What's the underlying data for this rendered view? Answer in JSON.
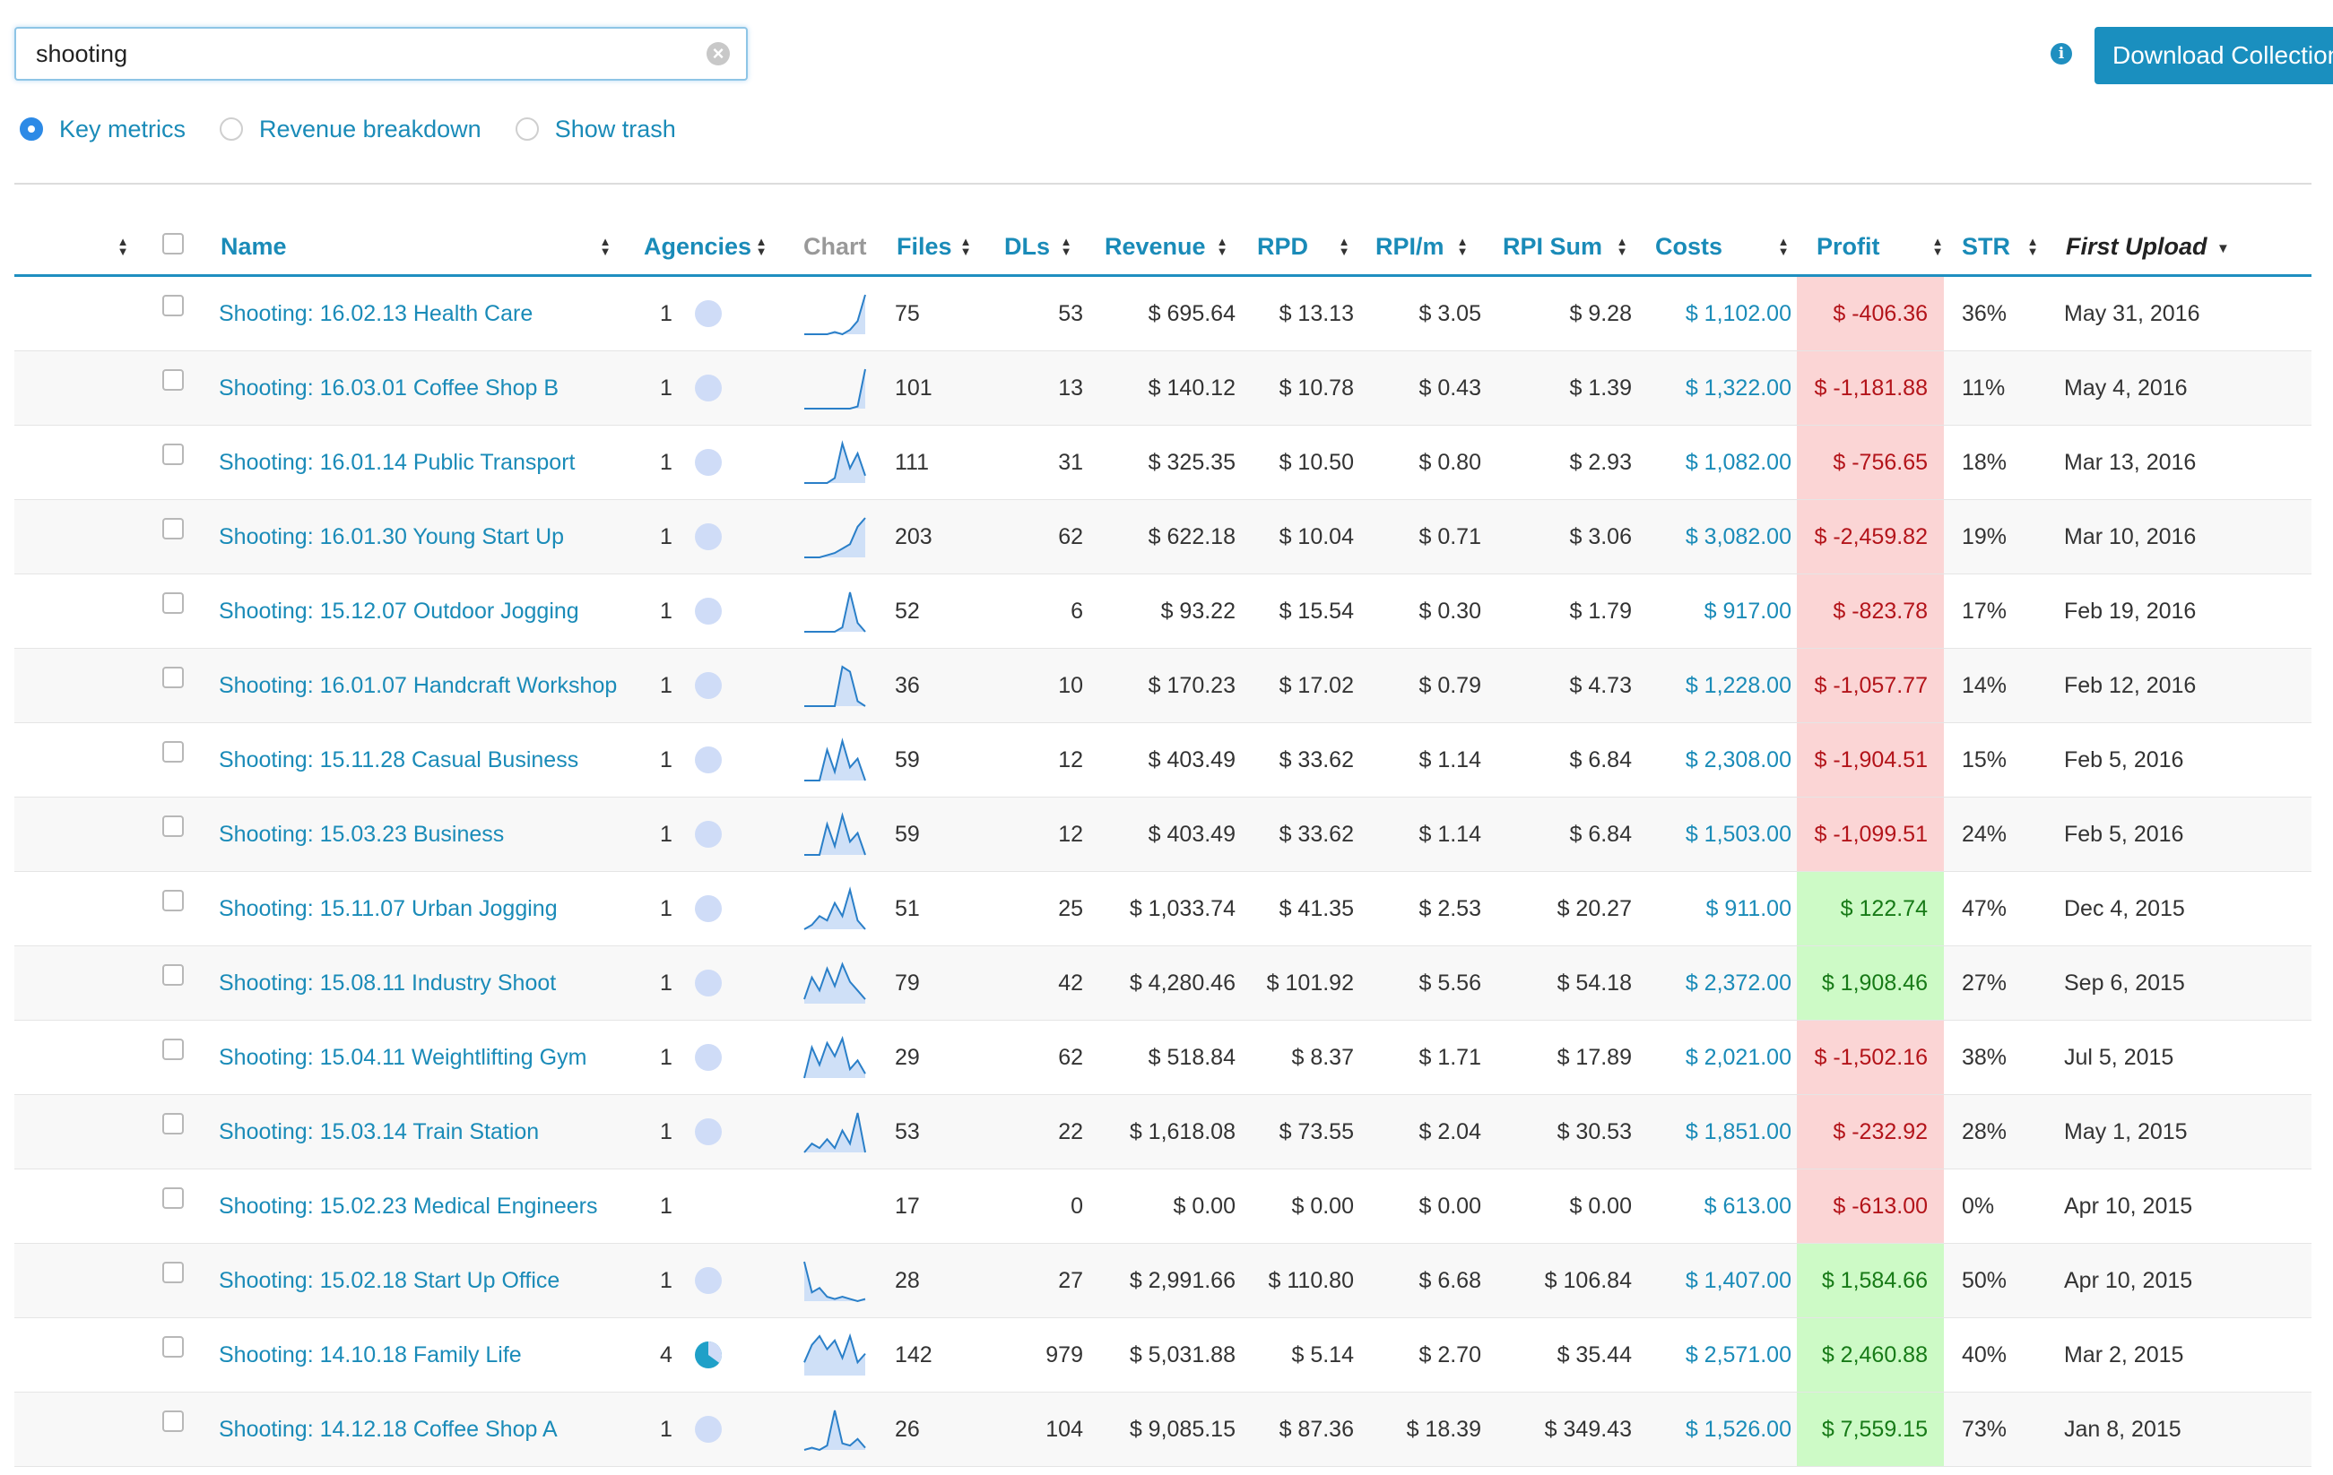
{
  "search": {
    "value": "shooting"
  },
  "toolbar": {
    "download_label": "Download Collection"
  },
  "view_options": [
    {
      "label": "Key metrics",
      "checked": true
    },
    {
      "label": "Revenue breakdown",
      "checked": false
    },
    {
      "label": "Show trash",
      "checked": false
    }
  ],
  "table": {
    "columns": {
      "name": "Name",
      "agencies": "Agencies",
      "chart": "Chart",
      "files": "Files",
      "dls": "DLs",
      "revenue": "Revenue",
      "rpd": "RPD",
      "rpim": "RPI/m",
      "rpisum": "RPI Sum",
      "costs": "Costs",
      "profit": "Profit",
      "str": "STR",
      "first_upload": "First Upload"
    },
    "rows": [
      {
        "name": "Shooting: 16.02.13 Health Care",
        "agencies": "1",
        "agency_share": 0,
        "spark": [
          0,
          0,
          0,
          0,
          1,
          0,
          2,
          6,
          18
        ],
        "files": "75",
        "dls": "53",
        "revenue": "$ 695.64",
        "rpd": "$ 13.13",
        "rpim": "$ 3.05",
        "rpisum": "$ 9.28",
        "costs": "$ 1,102.00",
        "profit": "$ -406.36",
        "profit_sign": "neg",
        "str": "36%",
        "first_upload": "May 31, 2016"
      },
      {
        "name": "Shooting: 16.03.01 Coffee Shop B",
        "agencies": "1",
        "agency_share": 0,
        "spark": [
          0,
          0,
          0,
          0,
          0,
          0,
          0,
          1,
          18
        ],
        "files": "101",
        "dls": "13",
        "revenue": "$ 140.12",
        "rpd": "$ 10.78",
        "rpim": "$ 0.43",
        "rpisum": "$ 1.39",
        "costs": "$ 1,322.00",
        "profit": "$ -1,181.88",
        "profit_sign": "neg",
        "str": "11%",
        "first_upload": "May 4, 2016"
      },
      {
        "name": "Shooting: 16.01.14 Public Transport",
        "agencies": "1",
        "agency_share": 0,
        "spark": [
          0,
          0,
          0,
          0,
          2,
          16,
          6,
          12,
          3
        ],
        "files": "111",
        "dls": "31",
        "revenue": "$ 325.35",
        "rpd": "$ 10.50",
        "rpim": "$ 0.80",
        "rpisum": "$ 2.93",
        "costs": "$ 1,082.00",
        "profit": "$ -756.65",
        "profit_sign": "neg",
        "str": "18%",
        "first_upload": "Mar 13, 2016"
      },
      {
        "name": "Shooting: 16.01.30 Young Start Up",
        "agencies": "1",
        "agency_share": 0,
        "spark": [
          0,
          0,
          0,
          1,
          2,
          4,
          6,
          14,
          18
        ],
        "files": "203",
        "dls": "62",
        "revenue": "$ 622.18",
        "rpd": "$ 10.04",
        "rpim": "$ 0.71",
        "rpisum": "$ 3.06",
        "costs": "$ 3,082.00",
        "profit": "$ -2,459.82",
        "profit_sign": "neg",
        "str": "19%",
        "first_upload": "Mar 10, 2016"
      },
      {
        "name": "Shooting: 15.12.07 Outdoor Jogging",
        "agencies": "1",
        "agency_share": 0,
        "spark": [
          0,
          0,
          0,
          0,
          0,
          2,
          18,
          4,
          0
        ],
        "files": "52",
        "dls": "6",
        "revenue": "$ 93.22",
        "rpd": "$ 15.54",
        "rpim": "$ 0.30",
        "rpisum": "$ 1.79",
        "costs": "$ 917.00",
        "profit": "$ -823.78",
        "profit_sign": "neg",
        "str": "17%",
        "first_upload": "Feb 19, 2016"
      },
      {
        "name": "Shooting: 16.01.07 Handcraft Workshop",
        "agencies": "1",
        "agency_share": 0,
        "spark": [
          0,
          0,
          0,
          0,
          0,
          16,
          14,
          2,
          0
        ],
        "files": "36",
        "dls": "10",
        "revenue": "$ 170.23",
        "rpd": "$ 17.02",
        "rpim": "$ 0.79",
        "rpisum": "$ 4.73",
        "costs": "$ 1,228.00",
        "profit": "$ -1,057.77",
        "profit_sign": "neg",
        "str": "14%",
        "first_upload": "Feb 12, 2016"
      },
      {
        "name": "Shooting: 15.11.28 Casual Business",
        "agencies": "1",
        "agency_share": 0,
        "spark": [
          0,
          0,
          0,
          14,
          4,
          18,
          6,
          10,
          0
        ],
        "files": "59",
        "dls": "12",
        "revenue": "$ 403.49",
        "rpd": "$ 33.62",
        "rpim": "$ 1.14",
        "rpisum": "$ 6.84",
        "costs": "$ 2,308.00",
        "profit": "$ -1,904.51",
        "profit_sign": "neg",
        "str": "15%",
        "first_upload": "Feb 5, 2016"
      },
      {
        "name": "Shooting: 15.03.23 Business",
        "agencies": "1",
        "agency_share": 0,
        "spark": [
          0,
          0,
          0,
          14,
          4,
          18,
          6,
          10,
          0
        ],
        "files": "59",
        "dls": "12",
        "revenue": "$ 403.49",
        "rpd": "$ 33.62",
        "rpim": "$ 1.14",
        "rpisum": "$ 6.84",
        "costs": "$ 1,503.00",
        "profit": "$ -1,099.51",
        "profit_sign": "neg",
        "str": "24%",
        "first_upload": "Feb 5, 2016"
      },
      {
        "name": "Shooting: 15.11.07 Urban Jogging",
        "agencies": "1",
        "agency_share": 0,
        "spark": [
          0,
          2,
          6,
          4,
          12,
          6,
          18,
          4,
          0
        ],
        "files": "51",
        "dls": "25",
        "revenue": "$ 1,033.74",
        "rpd": "$ 41.35",
        "rpim": "$ 2.53",
        "rpisum": "$ 20.27",
        "costs": "$ 911.00",
        "profit": "$ 122.74",
        "profit_sign": "pos",
        "str": "47%",
        "first_upload": "Dec 4, 2015"
      },
      {
        "name": "Shooting: 15.08.11 Industry Shoot",
        "agencies": "1",
        "agency_share": 0,
        "spark": [
          2,
          12,
          6,
          16,
          8,
          18,
          10,
          6,
          2
        ],
        "files": "79",
        "dls": "42",
        "revenue": "$ 4,280.46",
        "rpd": "$ 101.92",
        "rpim": "$ 5.56",
        "rpisum": "$ 54.18",
        "costs": "$ 2,372.00",
        "profit": "$ 1,908.46",
        "profit_sign": "pos",
        "str": "27%",
        "first_upload": "Sep 6, 2015"
      },
      {
        "name": "Shooting: 15.04.11 Weightlifting Gym",
        "agencies": "1",
        "agency_share": 0,
        "spark": [
          0,
          14,
          6,
          16,
          10,
          18,
          4,
          8,
          2
        ],
        "files": "29",
        "dls": "62",
        "revenue": "$ 518.84",
        "rpd": "$ 8.37",
        "rpim": "$ 1.71",
        "rpisum": "$ 17.89",
        "costs": "$ 2,021.00",
        "profit": "$ -1,502.16",
        "profit_sign": "neg",
        "str": "38%",
        "first_upload": "Jul 5, 2015"
      },
      {
        "name": "Shooting: 15.03.14 Train Station",
        "agencies": "1",
        "agency_share": 0,
        "spark": [
          0,
          4,
          2,
          6,
          2,
          10,
          4,
          18,
          0
        ],
        "files": "53",
        "dls": "22",
        "revenue": "$ 1,618.08",
        "rpd": "$ 73.55",
        "rpim": "$ 2.04",
        "rpisum": "$ 30.53",
        "costs": "$ 1,851.00",
        "profit": "$ -232.92",
        "profit_sign": "neg",
        "str": "28%",
        "first_upload": "May 1, 2015"
      },
      {
        "name": "Shooting: 15.02.23 Medical Engineers",
        "agencies": "1",
        "agency_share": null,
        "spark": [],
        "files": "17",
        "dls": "0",
        "revenue": "$ 0.00",
        "rpd": "$ 0.00",
        "rpim": "$ 0.00",
        "rpisum": "$ 0.00",
        "costs": "$ 613.00",
        "profit": "$ -613.00",
        "profit_sign": "neg",
        "str": "0%",
        "first_upload": "Apr 10, 2015"
      },
      {
        "name": "Shooting: 15.02.18 Start Up Office",
        "agencies": "1",
        "agency_share": 0,
        "spark": [
          18,
          4,
          6,
          2,
          1,
          2,
          1,
          0,
          1
        ],
        "files": "28",
        "dls": "27",
        "revenue": "$ 2,991.66",
        "rpd": "$ 110.80",
        "rpim": "$ 6.68",
        "rpisum": "$ 106.84",
        "costs": "$ 1,407.00",
        "profit": "$ 1,584.66",
        "profit_sign": "pos",
        "str": "50%",
        "first_upload": "Apr 10, 2015"
      },
      {
        "name": "Shooting: 14.10.18 Family Life",
        "agencies": "4",
        "agency_share": 0.65,
        "spark": [
          6,
          14,
          18,
          12,
          16,
          8,
          18,
          6,
          10
        ],
        "files": "142",
        "dls": "979",
        "revenue": "$ 5,031.88",
        "rpd": "$ 5.14",
        "rpim": "$ 2.70",
        "rpisum": "$ 35.44",
        "costs": "$ 2,571.00",
        "profit": "$ 2,460.88",
        "profit_sign": "pos",
        "str": "40%",
        "first_upload": "Mar 2, 2015"
      },
      {
        "name": "Shooting: 14.12.18 Coffee Shop A",
        "agencies": "1",
        "agency_share": 0,
        "spark": [
          0,
          1,
          0,
          2,
          18,
          3,
          2,
          5,
          1
        ],
        "files": "26",
        "dls": "104",
        "revenue": "$ 9,085.15",
        "rpd": "$ 87.36",
        "rpim": "$ 18.39",
        "rpisum": "$ 349.43",
        "costs": "$ 1,526.00",
        "profit": "$ 7,559.15",
        "profit_sign": "pos",
        "str": "73%",
        "first_upload": "Jan 8, 2015"
      }
    ]
  }
}
